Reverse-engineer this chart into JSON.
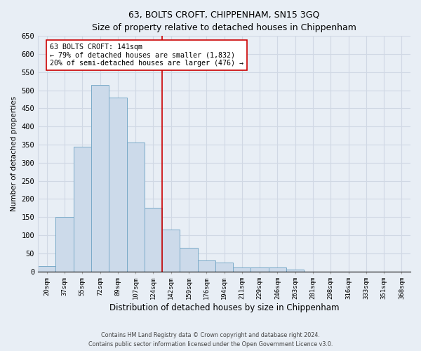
{
  "title": "63, BOLTS CROFT, CHIPPENHAM, SN15 3GQ",
  "subtitle": "Size of property relative to detached houses in Chippenham",
  "xlabel": "Distribution of detached houses by size in Chippenham",
  "ylabel": "Number of detached properties",
  "bar_labels": [
    "20sqm",
    "37sqm",
    "55sqm",
    "72sqm",
    "89sqm",
    "107sqm",
    "124sqm",
    "142sqm",
    "159sqm",
    "176sqm",
    "194sqm",
    "211sqm",
    "229sqm",
    "246sqm",
    "263sqm",
    "281sqm",
    "298sqm",
    "316sqm",
    "333sqm",
    "351sqm",
    "368sqm"
  ],
  "bar_values": [
    15,
    150,
    345,
    515,
    480,
    355,
    175,
    115,
    65,
    30,
    25,
    10,
    10,
    10,
    5,
    0,
    0,
    0,
    0,
    0,
    0
  ],
  "bar_color": "#ccdaea",
  "bar_edgecolor": "#7aaac8",
  "ylim": [
    0,
    650
  ],
  "yticks": [
    0,
    50,
    100,
    150,
    200,
    250,
    300,
    350,
    400,
    450,
    500,
    550,
    600,
    650
  ],
  "line_x_index": 7,
  "property_line_color": "#cc0000",
  "annotation_text": "63 BOLTS CROFT: 141sqm\n← 79% of detached houses are smaller (1,832)\n20% of semi-detached houses are larger (476) →",
  "annotation_box_color": "#ffffff",
  "annotation_box_edgecolor": "#cc0000",
  "footer_line1": "Contains HM Land Registry data © Crown copyright and database right 2024.",
  "footer_line2": "Contains public sector information licensed under the Open Government Licence v3.0.",
  "background_color": "#e8eef5",
  "grid_color": "#d0d8e4"
}
